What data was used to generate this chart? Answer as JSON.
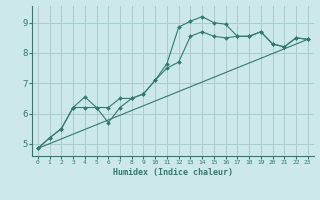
{
  "xlabel": "Humidex (Indice chaleur)",
  "background_color": "#cce8e8",
  "grid_color": "#aacccc",
  "line_color": "#2d7d6e",
  "xlim": [
    -0.5,
    23.5
  ],
  "ylim": [
    4.6,
    9.55
  ],
  "yticks": [
    5,
    6,
    7,
    8,
    9
  ],
  "xticks": [
    0,
    1,
    2,
    3,
    4,
    5,
    6,
    7,
    8,
    9,
    10,
    11,
    12,
    13,
    14,
    15,
    16,
    17,
    18,
    19,
    20,
    21,
    22,
    23
  ],
  "series": [
    {
      "x": [
        0,
        1,
        2,
        3,
        4,
        5,
        6,
        7,
        8,
        9,
        10,
        11,
        12,
        13,
        14,
        15,
        16,
        17,
        18,
        19,
        20,
        21,
        22,
        23
      ],
      "y": [
        4.85,
        5.2,
        5.5,
        6.2,
        6.55,
        6.2,
        5.7,
        6.2,
        6.5,
        6.65,
        7.1,
        7.65,
        8.85,
        9.05,
        9.2,
        9.0,
        8.95,
        8.55,
        8.55,
        8.7,
        8.3,
        8.2,
        8.5,
        8.45
      ],
      "marker": true
    },
    {
      "x": [
        0,
        1,
        2,
        3,
        4,
        5,
        6,
        7,
        8,
        9,
        10,
        11,
        12,
        13,
        14,
        15,
        16,
        17,
        18,
        19,
        20,
        21,
        22,
        23
      ],
      "y": [
        4.85,
        5.2,
        5.5,
        6.2,
        6.2,
        6.2,
        6.2,
        6.5,
        6.5,
        6.65,
        7.1,
        7.5,
        7.7,
        8.55,
        8.7,
        8.55,
        8.5,
        8.55,
        8.55,
        8.7,
        8.3,
        8.2,
        8.5,
        8.45
      ],
      "marker": true
    },
    {
      "x": [
        0,
        23
      ],
      "y": [
        4.85,
        8.45
      ],
      "marker": false
    }
  ]
}
